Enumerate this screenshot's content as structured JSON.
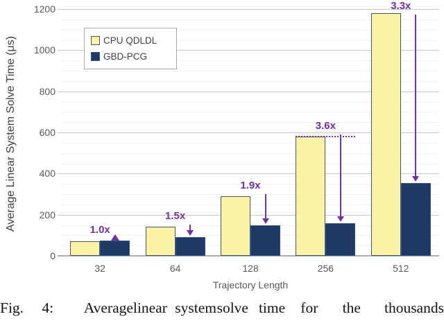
{
  "chart_data": {
    "type": "bar",
    "title": "",
    "xlabel": "Trajectory Length",
    "ylabel": "Average Linear System Solve Time (μs)",
    "categories": [
      "32",
      "64",
      "128",
      "256",
      "512"
    ],
    "series": [
      {
        "name": "CPU QDLDL",
        "color": "#FAF3A5",
        "border_color": "#44546A",
        "values": [
          70,
          140,
          290,
          580,
          1180
        ]
      },
      {
        "name": "GBD-PCG",
        "color": "#1F3864",
        "border_color": "#2F5597",
        "values": [
          75,
          90,
          150,
          160,
          355
        ]
      }
    ],
    "ylim": [
      0,
      1200
    ],
    "ytick_step": 200,
    "minor_gridline_step": 50,
    "yticks": [
      "0",
      "200",
      "400",
      "600",
      "800",
      "1000",
      "1200"
    ],
    "grid": true,
    "legend_position": "top-left",
    "annotation_color": "#7030A0",
    "annotations": [
      {
        "category": "32",
        "label": "1.0x",
        "type": "up-triangle"
      },
      {
        "category": "64",
        "label": "1.5x",
        "type": "down-arrow"
      },
      {
        "category": "128",
        "label": "1.9x",
        "type": "down-arrow"
      },
      {
        "category": "256",
        "label": "3.6x",
        "type": "down-arrow-dotted"
      },
      {
        "category": "512",
        "label": "3.3x",
        "type": "down-arrow"
      }
    ]
  },
  "caption": {
    "text": "Fig. 4: Average linear system solve time for the thousands",
    "words": [
      "Fig.",
      "4:",
      "Average",
      "linear",
      "system",
      "solve",
      "time",
      "for",
      "the",
      "thousands"
    ]
  }
}
